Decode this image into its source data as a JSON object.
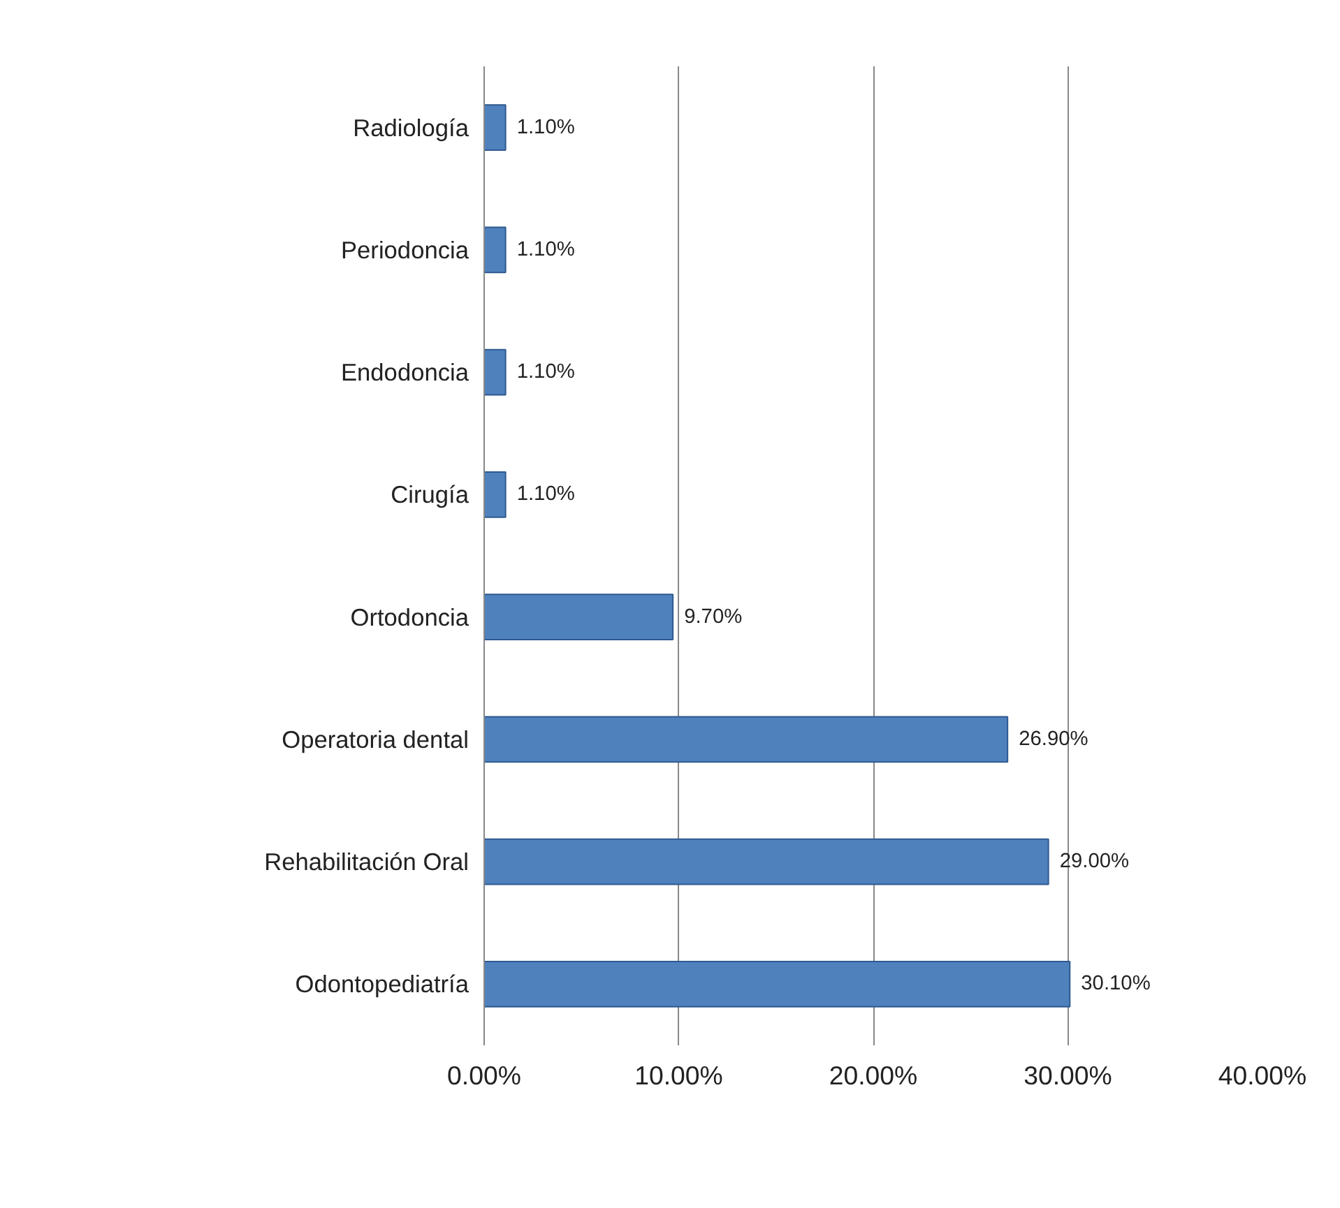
{
  "chart_data": {
    "type": "bar",
    "orientation": "horizontal",
    "categories": [
      "Radiología",
      "Periodoncia",
      "Endodoncia",
      "Cirugía",
      "Ortodoncia",
      "Operatoria dental",
      "Rehabilitación Oral",
      "Odontopediatría"
    ],
    "values": [
      1.1,
      1.1,
      1.1,
      1.1,
      9.7,
      26.9,
      29.0,
      30.1
    ],
    "value_labels": [
      "1.10%",
      "1.10%",
      "1.10%",
      "1.10%",
      "9.70%",
      "26.90%",
      "29.00%",
      "30.10%"
    ],
    "color": "#4f81bd",
    "xlim": [
      0,
      40
    ],
    "xticks": [
      {
        "value": 0,
        "label": "0.00%"
      },
      {
        "value": 10,
        "label": "10.00%"
      },
      {
        "value": 20,
        "label": "20.00%"
      },
      {
        "value": 30,
        "label": "30.00%"
      },
      {
        "value": 40,
        "label": "40.00%"
      }
    ],
    "grid": "x"
  }
}
